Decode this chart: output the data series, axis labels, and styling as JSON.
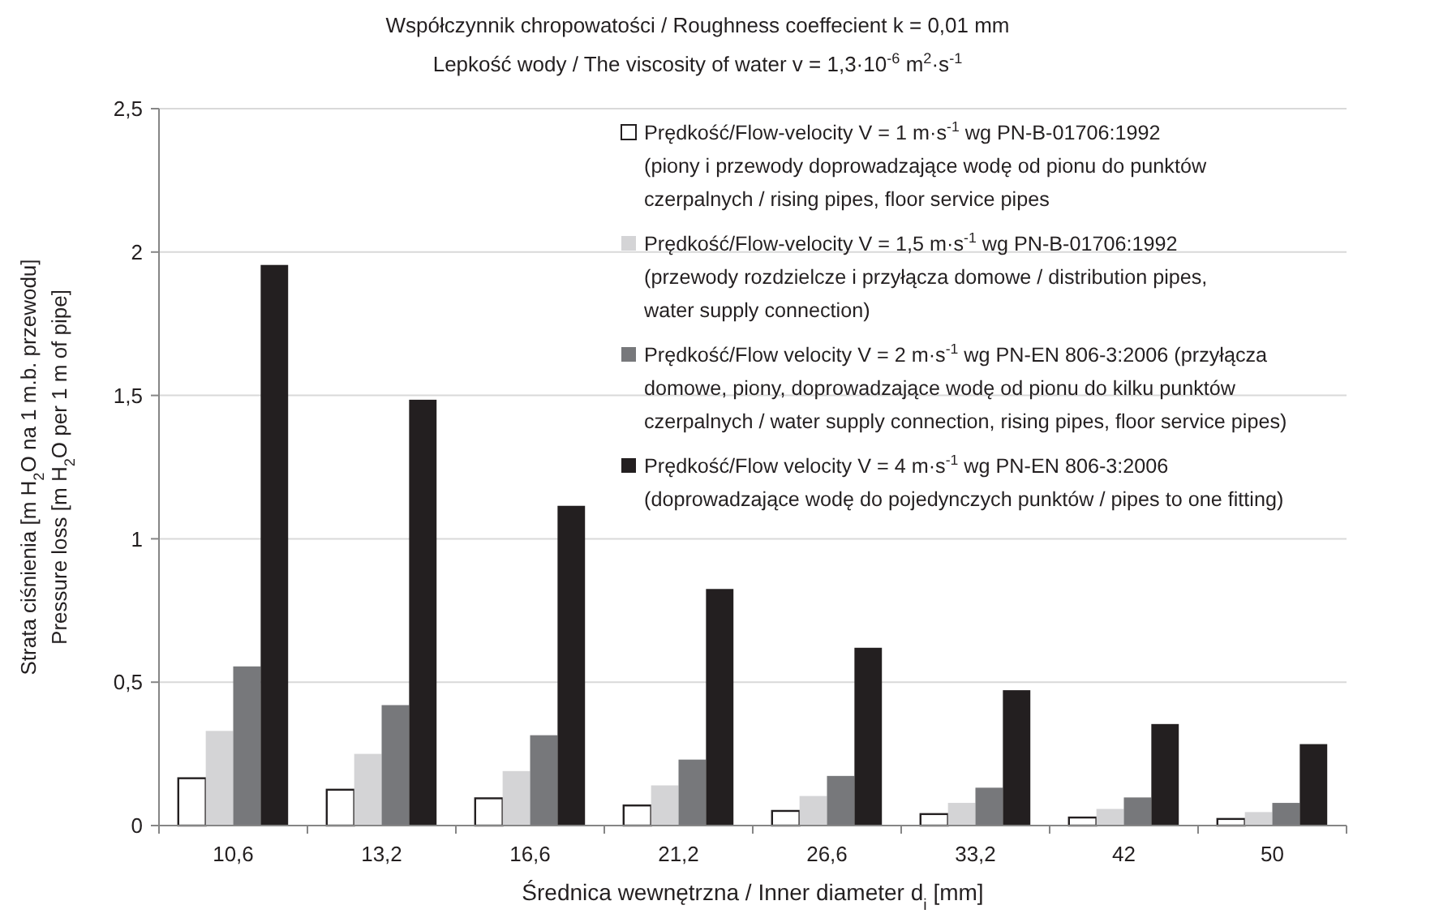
{
  "chart_data": {
    "type": "bar",
    "title": "Współczynnik chropowatości  / Roughness coeffecient  k = 0,01 mm",
    "subtitle": "Lepkość wody / The viscosity of water  v = 1,3·10$^{-6}$ m$^{2}$·s$^{-1}$",
    "xlabel": "Średnica wewnętrzna / Inner diameter d$_{i}$ [mm]",
    "ylabel": "Strata ciśnienia [m H$_{2}$O na 1 m.b. przewodu]\nPressure loss [m H$_{2}$O per 1 m of pipe]",
    "categories": [
      "10,6",
      "13,2",
      "16,6",
      "21,2",
      "26,6",
      "33,2",
      "42",
      "50"
    ],
    "series": [
      {
        "name": "Prędkość/Flow-velocity V = 1 m·s$^{-1}$ wg PN-B-01706:1992\n(piony i przewody doprowadzające wodę od pionu do punktów\nczerpalnych / rising pipes, floor service pipes",
        "color": "#ffffff",
        "values": [
          0.165,
          0.125,
          0.095,
          0.07,
          0.051,
          0.04,
          0.028,
          0.023
        ]
      },
      {
        "name": "Prędkość/Flow-velocity V = 1,5 m·s$^{-1}$ wg PN-B-01706:1992\n(przewody rozdzielcze i przyłącza domowe / distribution pipes,\nwater supply connection)",
        "color": "#d4d4d6",
        "values": [
          0.33,
          0.25,
          0.19,
          0.14,
          0.103,
          0.079,
          0.058,
          0.047
        ]
      },
      {
        "name": "Prędkość/Flow velocity V = 2 m·s$^{-1}$ wg PN-EN 806-3:2006 (przyłącza\ndomowe, piony, doprowadzające wodę od pionu do kilku punktów\nczerpalnych / water supply connection, rising pipes, floor service pipes)",
        "color": "#77787b",
        "values": [
          0.555,
          0.42,
          0.315,
          0.23,
          0.173,
          0.132,
          0.098,
          0.079
        ]
      },
      {
        "name": "Prędkość/Flow velocity V = 4 m·s$^{-1}$ wg PN-EN 806-3:2006\n(doprowadzające wodę do pojedynczych punktów / pipes to one fitting)",
        "color": "#231f20",
        "values": [
          1.955,
          1.485,
          1.115,
          0.825,
          0.62,
          0.472,
          0.354,
          0.284
        ]
      }
    ],
    "ylim": [
      0,
      2.5
    ],
    "yticks": [
      0,
      {
        "value": 0.5,
        "label": "0,5"
      },
      1,
      {
        "value": 1.5,
        "label": "1,5"
      },
      2,
      {
        "value": 2.5,
        "label": "2,5"
      }
    ],
    "grid": "y",
    "legend": "top right"
  }
}
